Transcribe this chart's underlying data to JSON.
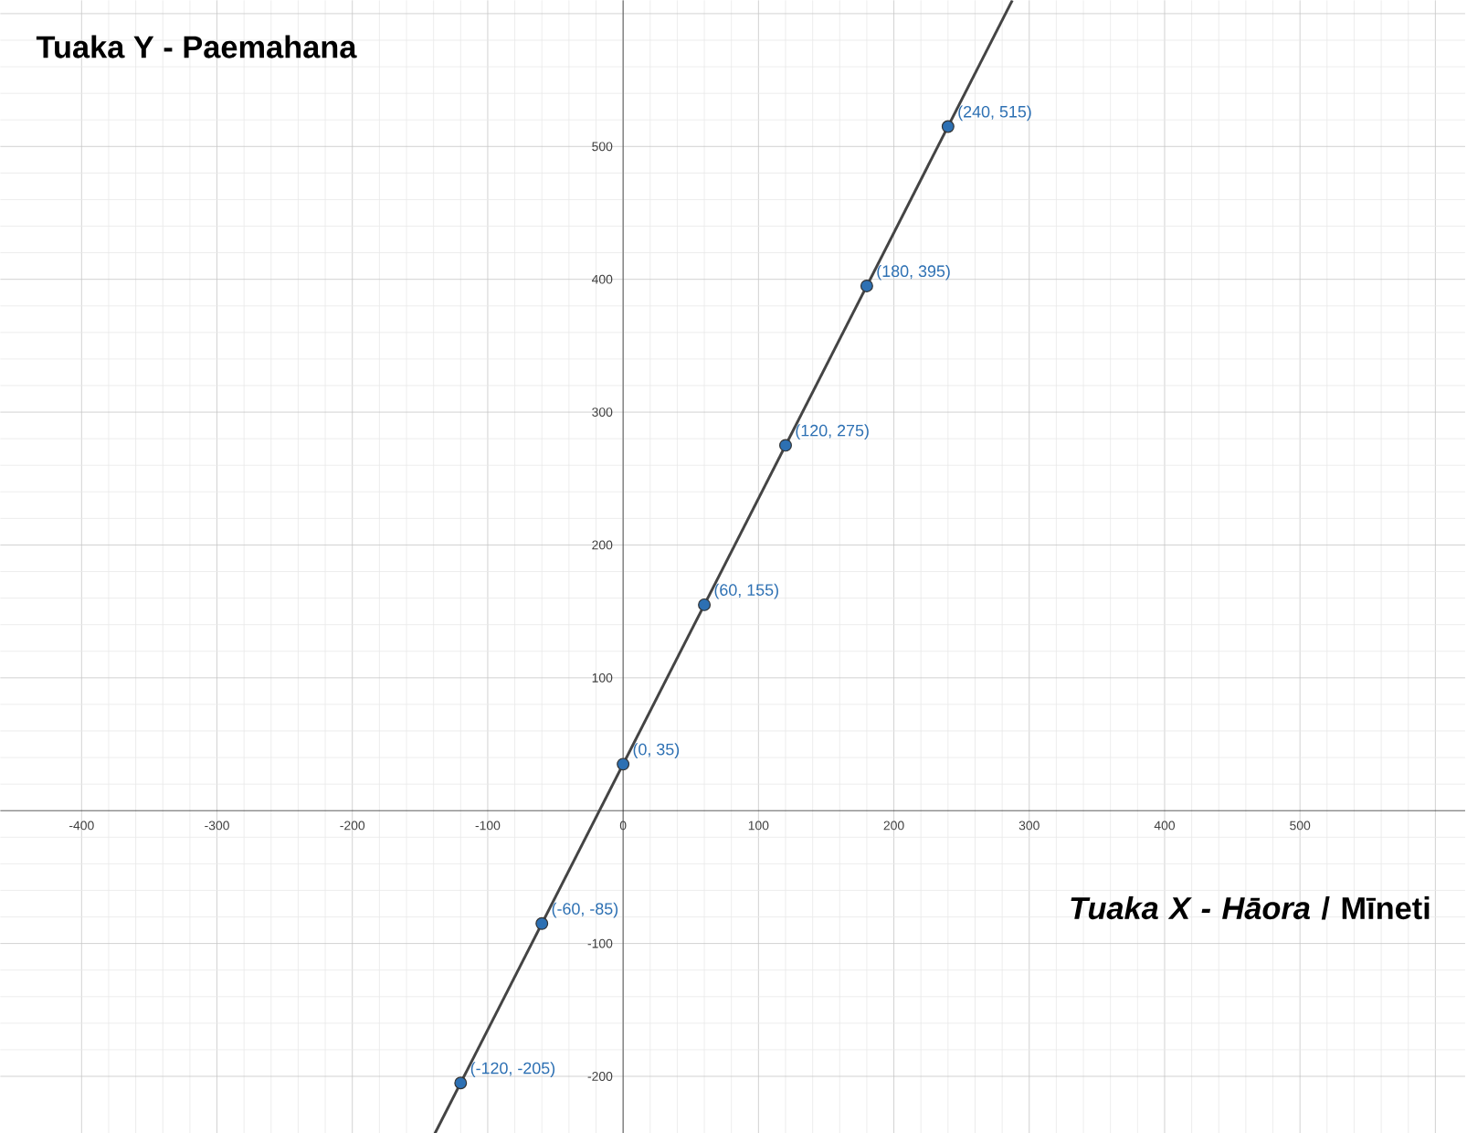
{
  "chart_data": {
    "type": "scatter",
    "xlabel": "*Tuaka X - Hāora* / Mīneti",
    "ylabel": "Tuaka Y - Paemahana",
    "xlim": [
      -460,
      622
    ],
    "ylim": [
      -243,
      610
    ],
    "xticks": [
      -400,
      -300,
      -200,
      -100,
      0,
      100,
      200,
      300,
      400,
      500,
      {
        "value": 600,
        "label": null
      }
    ],
    "yticks": [
      -200,
      -100,
      {
        "value": 0,
        "label": null
      },
      100,
      200,
      300,
      400,
      500,
      {
        "value": 600,
        "label": null
      }
    ],
    "grid": true,
    "series": [
      {
        "type": "line",
        "x": [
          -139,
          287.5
        ],
        "values": [
          -243,
          610
        ],
        "color": "#444444",
        "marker": "none"
      },
      {
        "x": [
          -120,
          -60,
          0,
          60,
          120,
          180,
          240
        ],
        "values": [
          -205,
          -85,
          35,
          155,
          275,
          395,
          515
        ],
        "color": "#2d70b3",
        "marker": "circle",
        "value_labels": [
          "(-120, -205)",
          "(-60, -85)",
          "(0, 35)",
          "(60, 155)",
          "(120, 275)",
          "(180, 395)",
          "(240, 515)"
        ]
      }
    ]
  }
}
